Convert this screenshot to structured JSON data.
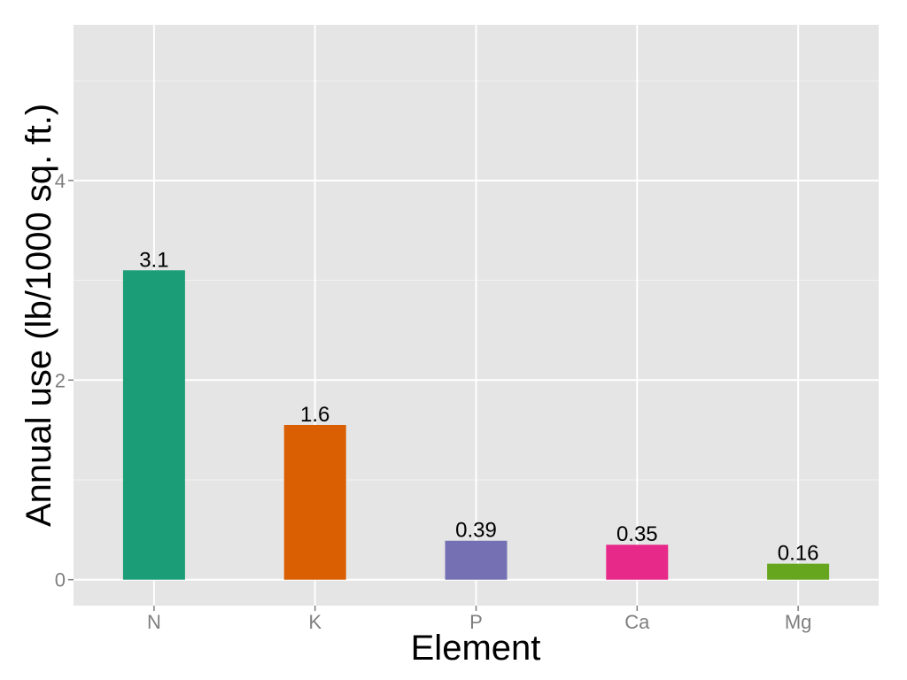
{
  "chart_data": {
    "type": "bar",
    "title": "",
    "xlabel": "Element",
    "ylabel": "Annual use (lb/1000 sq. ft.)",
    "categories": [
      "N",
      "K",
      "P",
      "Ca",
      "Mg"
    ],
    "values": [
      3.1,
      1.55,
      0.39,
      0.35,
      0.16
    ],
    "data_labels": [
      "3.1",
      "1.6",
      "0.39",
      "0.35",
      "0.16"
    ],
    "colors": [
      "#1b9e77",
      "#d95f02",
      "#7570b3",
      "#e7298a",
      "#66a61e"
    ],
    "ylim": [
      -0.26,
      5.56
    ],
    "yticks": [
      0,
      2,
      4
    ],
    "ytick_labels": [
      "0",
      "2",
      "4"
    ],
    "grid": true,
    "panel_background": "#e5e5e5",
    "legend": "none"
  }
}
